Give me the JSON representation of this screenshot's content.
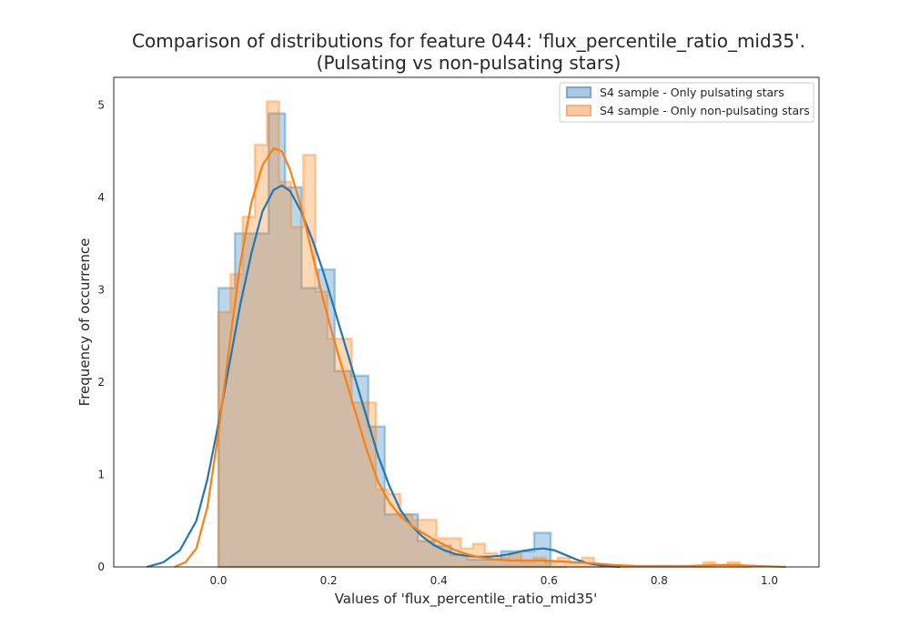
{
  "chart_data": {
    "type": "histogram",
    "title_line1": "Comparison of distributions for feature 044: 'flux_percentile_ratio_mid35'.",
    "title_line2": "(Pulsating vs non-pulsating stars)",
    "xlabel": "Values of 'flux_percentile_ratio_mid35'",
    "ylabel": "Frequency of occurrence",
    "xlim": [
      -0.19,
      1.09
    ],
    "ylim": [
      0,
      5.3
    ],
    "xticks": [
      0.0,
      0.2,
      0.4,
      0.6,
      0.8,
      1.0
    ],
    "xtick_labels": [
      "0.0",
      "0.2",
      "0.4",
      "0.6",
      "0.8",
      "1.0"
    ],
    "yticks": [
      0,
      1,
      2,
      3,
      4,
      5
    ],
    "ytick_labels": [
      "0",
      "1",
      "2",
      "3",
      "4",
      "5"
    ],
    "grid": false,
    "legend_position": "top-right",
    "series": [
      {
        "name": "S4 sample - Only pulsating stars",
        "color": "#1f77b4",
        "fill": "#aac8e0",
        "bins": [
          [
            0.0,
            0.03,
            3.02
          ],
          [
            0.03,
            0.06,
            3.61
          ],
          [
            0.06,
            0.091,
            3.61
          ],
          [
            0.091,
            0.121,
            4.91
          ],
          [
            0.121,
            0.151,
            4.11
          ],
          [
            0.151,
            0.181,
            3.02
          ],
          [
            0.181,
            0.211,
            3.22
          ],
          [
            0.211,
            0.241,
            2.12
          ],
          [
            0.241,
            0.272,
            2.07
          ],
          [
            0.272,
            0.302,
            1.52
          ],
          [
            0.302,
            0.332,
            0.57
          ],
          [
            0.332,
            0.362,
            0.57
          ],
          [
            0.362,
            0.392,
            0.28
          ],
          [
            0.392,
            0.422,
            0.23
          ],
          [
            0.422,
            0.452,
            0.13
          ],
          [
            0.452,
            0.483,
            0.08
          ],
          [
            0.483,
            0.513,
            0.08
          ],
          [
            0.513,
            0.543,
            0.17
          ],
          [
            0.543,
            0.573,
            0.17
          ],
          [
            0.573,
            0.603,
            0.37
          ],
          [
            0.603,
            0.633,
            0.0
          ]
        ],
        "kde": [
          [
            -0.13,
            0.0
          ],
          [
            -0.1,
            0.05
          ],
          [
            -0.07,
            0.18
          ],
          [
            -0.04,
            0.5
          ],
          [
            -0.02,
            0.95
          ],
          [
            0.0,
            1.55
          ],
          [
            0.02,
            2.2
          ],
          [
            0.04,
            2.85
          ],
          [
            0.06,
            3.4
          ],
          [
            0.08,
            3.85
          ],
          [
            0.1,
            4.08
          ],
          [
            0.115,
            4.13
          ],
          [
            0.13,
            4.07
          ],
          [
            0.15,
            3.85
          ],
          [
            0.17,
            3.55
          ],
          [
            0.19,
            3.2
          ],
          [
            0.21,
            2.8
          ],
          [
            0.23,
            2.4
          ],
          [
            0.25,
            2.0
          ],
          [
            0.27,
            1.6
          ],
          [
            0.29,
            1.2
          ],
          [
            0.31,
            0.88
          ],
          [
            0.33,
            0.62
          ],
          [
            0.35,
            0.45
          ],
          [
            0.37,
            0.33
          ],
          [
            0.39,
            0.24
          ],
          [
            0.41,
            0.18
          ],
          [
            0.43,
            0.14
          ],
          [
            0.45,
            0.12
          ],
          [
            0.47,
            0.11
          ],
          [
            0.49,
            0.11
          ],
          [
            0.51,
            0.12
          ],
          [
            0.53,
            0.14
          ],
          [
            0.55,
            0.17
          ],
          [
            0.57,
            0.19
          ],
          [
            0.59,
            0.2
          ],
          [
            0.61,
            0.18
          ],
          [
            0.63,
            0.13
          ],
          [
            0.65,
            0.08
          ],
          [
            0.67,
            0.04
          ],
          [
            0.7,
            0.01
          ],
          [
            0.73,
            0.0
          ]
        ]
      },
      {
        "name": "S4 sample - Only non-pulsating stars",
        "color": "#ff7f0e",
        "fill": "#fcc9a0",
        "bins": [
          [
            0.0,
            0.022,
            2.76
          ],
          [
            0.022,
            0.044,
            3.17
          ],
          [
            0.044,
            0.066,
            3.79
          ],
          [
            0.066,
            0.088,
            4.57
          ],
          [
            0.088,
            0.11,
            5.04
          ],
          [
            0.11,
            0.132,
            4.17
          ],
          [
            0.132,
            0.154,
            3.68
          ],
          [
            0.154,
            0.176,
            4.46
          ],
          [
            0.176,
            0.198,
            2.98
          ],
          [
            0.198,
            0.22,
            2.47
          ],
          [
            0.22,
            0.242,
            2.47
          ],
          [
            0.242,
            0.264,
            1.78
          ],
          [
            0.264,
            0.286,
            1.78
          ],
          [
            0.286,
            0.308,
            0.84
          ],
          [
            0.308,
            0.33,
            0.79
          ],
          [
            0.33,
            0.352,
            0.57
          ],
          [
            0.352,
            0.374,
            0.51
          ],
          [
            0.374,
            0.396,
            0.51
          ],
          [
            0.396,
            0.418,
            0.31
          ],
          [
            0.418,
            0.44,
            0.31
          ],
          [
            0.44,
            0.462,
            0.2
          ],
          [
            0.462,
            0.484,
            0.25
          ],
          [
            0.484,
            0.506,
            0.15
          ],
          [
            0.506,
            0.528,
            0.1
          ],
          [
            0.528,
            0.55,
            0.15
          ],
          [
            0.55,
            0.572,
            0.05
          ],
          [
            0.572,
            0.594,
            0.1
          ],
          [
            0.594,
            0.616,
            0.05
          ],
          [
            0.616,
            0.638,
            0.1
          ],
          [
            0.638,
            0.66,
            0.05
          ],
          [
            0.66,
            0.682,
            0.1
          ],
          [
            0.682,
            0.88,
            0.0
          ],
          [
            0.88,
            0.902,
            0.05
          ],
          [
            0.902,
            0.924,
            0.0
          ],
          [
            0.924,
            0.946,
            0.05
          ],
          [
            0.946,
            0.968,
            0.0
          ]
        ],
        "kde": [
          [
            -0.08,
            0.0
          ],
          [
            -0.06,
            0.05
          ],
          [
            -0.04,
            0.2
          ],
          [
            -0.02,
            0.65
          ],
          [
            0.0,
            1.45
          ],
          [
            0.02,
            2.4
          ],
          [
            0.04,
            3.3
          ],
          [
            0.06,
            3.95
          ],
          [
            0.08,
            4.35
          ],
          [
            0.1,
            4.53
          ],
          [
            0.115,
            4.5
          ],
          [
            0.13,
            4.3
          ],
          [
            0.15,
            3.9
          ],
          [
            0.17,
            3.4
          ],
          [
            0.19,
            2.9
          ],
          [
            0.21,
            2.45
          ],
          [
            0.23,
            2.05
          ],
          [
            0.25,
            1.65
          ],
          [
            0.27,
            1.25
          ],
          [
            0.29,
            0.92
          ],
          [
            0.31,
            0.7
          ],
          [
            0.33,
            0.55
          ],
          [
            0.35,
            0.45
          ],
          [
            0.37,
            0.37
          ],
          [
            0.39,
            0.3
          ],
          [
            0.41,
            0.24
          ],
          [
            0.43,
            0.18
          ],
          [
            0.45,
            0.14
          ],
          [
            0.47,
            0.11
          ],
          [
            0.5,
            0.08
          ],
          [
            0.53,
            0.07
          ],
          [
            0.56,
            0.07
          ],
          [
            0.59,
            0.07
          ],
          [
            0.62,
            0.06
          ],
          [
            0.65,
            0.05
          ],
          [
            0.68,
            0.04
          ],
          [
            0.72,
            0.02
          ],
          [
            0.76,
            0.01
          ],
          [
            0.8,
            0.01
          ],
          [
            0.85,
            0.01
          ],
          [
            0.9,
            0.02
          ],
          [
            0.94,
            0.02
          ],
          [
            0.98,
            0.01
          ],
          [
            1.03,
            0.0
          ]
        ]
      }
    ]
  }
}
